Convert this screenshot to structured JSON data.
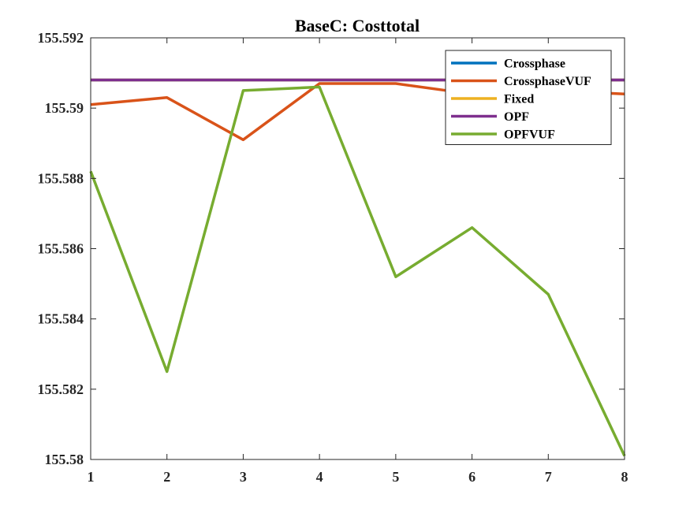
{
  "chart_data": {
    "type": "line",
    "title": "BaseC: Costtotal",
    "xlabel": "",
    "ylabel": "",
    "x": [
      1,
      2,
      3,
      4,
      5,
      6,
      7,
      8
    ],
    "xlim": [
      1,
      8
    ],
    "ylim": [
      155.58,
      155.592
    ],
    "x_ticks": [
      1,
      2,
      3,
      4,
      5,
      6,
      7,
      8
    ],
    "x_tick_labels": [
      "1",
      "2",
      "3",
      "4",
      "5",
      "6",
      "7",
      "8"
    ],
    "y_ticks": [
      155.58,
      155.582,
      155.584,
      155.586,
      155.588,
      155.59,
      155.592
    ],
    "y_tick_labels": [
      "155.58",
      "155.582",
      "155.584",
      "155.586",
      "155.588",
      "155.59",
      "155.592"
    ],
    "grid": false,
    "legend_position": "top-right",
    "series": [
      {
        "name": "Crossphase",
        "color": "#0072BD",
        "values": [
          155.5908,
          155.5908,
          155.5908,
          155.5908,
          155.5908,
          155.5908,
          155.5908,
          155.5908
        ]
      },
      {
        "name": "CrossphaseVUF",
        "color": "#D95319",
        "values": [
          155.5901,
          155.5903,
          155.5891,
          155.5907,
          155.5907,
          155.5904,
          155.5905,
          155.5904
        ]
      },
      {
        "name": "Fixed",
        "color": "#EDB120",
        "values": [
          155.5908,
          155.5908,
          155.5908,
          155.5908,
          155.5908,
          155.5908,
          155.5908,
          155.5908
        ]
      },
      {
        "name": "OPF",
        "color": "#7E2F8E",
        "values": [
          155.5908,
          155.5908,
          155.5908,
          155.5908,
          155.5908,
          155.5908,
          155.5908,
          155.5908
        ]
      },
      {
        "name": "OPFVUF",
        "color": "#77AC30",
        "values": [
          155.5882,
          155.5825,
          155.5905,
          155.5906,
          155.5852,
          155.5866,
          155.5847,
          155.5801
        ]
      }
    ]
  }
}
